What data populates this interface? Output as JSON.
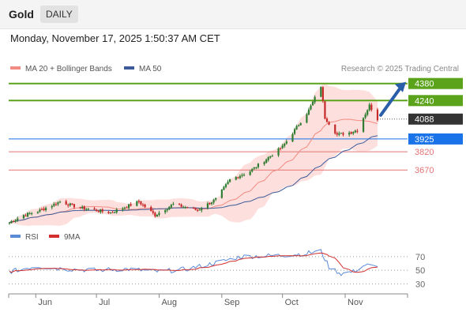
{
  "header": {
    "instrument": "Gold",
    "period": "DAILY",
    "timestamp": "Monday, November 17, 2025 1:50:37 AM CET",
    "copyright": "Research © 2025 Trading Central"
  },
  "colors": {
    "up": "#2e7d32",
    "down": "#c62828",
    "ma20": "#f28b82",
    "band_fill": "#fde0dd",
    "ma50": "#3c5a99",
    "resistance": "#5aa31a",
    "pivot": "#1a73e8",
    "support": "#e57373",
    "last": "#333333",
    "arrow": "#2a5ea8",
    "rsi": "#5b8bd6",
    "rsi_ma": "#d32f2f"
  },
  "chart_data": [
    {
      "type": "candlestick",
      "title": "",
      "legend": [
        {
          "name": "MA 20 + Bollinger Bands",
          "color": "#f28b82"
        },
        {
          "name": "MA 50",
          "color": "#3c5a99"
        }
      ],
      "legend_position": "top-left",
      "ylim": [
        3250,
        4430
      ],
      "x_ticks": [
        {
          "label": "Jun",
          "date": "2025-06-01"
        },
        {
          "label": "Jul",
          "date": "2025-07-01"
        },
        {
          "label": "Aug",
          "date": "2025-08-01"
        },
        {
          "label": "Sep",
          "date": "2025-09-01"
        },
        {
          "label": "Oct",
          "date": "2025-10-01"
        },
        {
          "label": "Nov",
          "date": "2025-11-01"
        }
      ],
      "date_range": [
        "2025-05-19",
        "2025-11-17"
      ],
      "price_anchors": [
        [
          "2025-05-19",
          3240
        ],
        [
          "2025-05-26",
          3300
        ],
        [
          "2025-06-02",
          3330
        ],
        [
          "2025-06-13",
          3410
        ],
        [
          "2025-06-23",
          3360
        ],
        [
          "2025-07-01",
          3340
        ],
        [
          "2025-07-08",
          3320
        ],
        [
          "2025-07-22",
          3410
        ],
        [
          "2025-07-30",
          3300
        ],
        [
          "2025-08-08",
          3390
        ],
        [
          "2025-08-20",
          3340
        ],
        [
          "2025-08-29",
          3430
        ],
        [
          "2025-09-05",
          3590
        ],
        [
          "2025-09-15",
          3660
        ],
        [
          "2025-09-23",
          3760
        ],
        [
          "2025-10-01",
          3860
        ],
        [
          "2025-10-08",
          4020
        ],
        [
          "2025-10-14",
          4160
        ],
        [
          "2025-10-20",
          4360
        ],
        [
          "2025-10-22",
          4100
        ],
        [
          "2025-10-28",
          3960
        ],
        [
          "2025-11-04",
          3980
        ],
        [
          "2025-11-07",
          4000
        ],
        [
          "2025-11-13",
          4200
        ],
        [
          "2025-11-17",
          4088
        ]
      ],
      "levels": [
        {
          "label": "4380",
          "value": 4380,
          "kind": "resistance"
        },
        {
          "label": "4240",
          "value": 4240,
          "kind": "resistance"
        },
        {
          "label": "4088",
          "value": 4088,
          "kind": "last"
        },
        {
          "label": "3925",
          "value": 3925,
          "kind": "pivot"
        },
        {
          "label": "3820",
          "value": 3820,
          "kind": "support"
        },
        {
          "label": "3670",
          "value": 3670,
          "kind": "support"
        }
      ],
      "forecast_arrow": {
        "direction": "up",
        "from": 4120,
        "to": 4380
      }
    },
    {
      "type": "line",
      "title": "",
      "legend": [
        {
          "name": "RSI",
          "color": "#5b8bd6"
        },
        {
          "name": "9MA",
          "color": "#d32f2f"
        }
      ],
      "legend_position": "top-left",
      "ylim": [
        20,
        85
      ],
      "y_ticks": [
        "70",
        "50",
        "30"
      ],
      "rsi_anchors": [
        [
          "2025-05-19",
          48
        ],
        [
          "2025-06-01",
          56
        ],
        [
          "2025-06-15",
          52
        ],
        [
          "2025-07-01",
          50
        ],
        [
          "2025-07-15",
          52
        ],
        [
          "2025-08-01",
          48
        ],
        [
          "2025-08-15",
          52
        ],
        [
          "2025-09-01",
          63
        ],
        [
          "2025-09-10",
          70
        ],
        [
          "2025-09-20",
          71
        ],
        [
          "2025-10-01",
          72
        ],
        [
          "2025-10-10",
          74
        ],
        [
          "2025-10-20",
          78
        ],
        [
          "2025-10-24",
          55
        ],
        [
          "2025-10-30",
          45
        ],
        [
          "2025-11-05",
          48
        ],
        [
          "2025-11-11",
          58
        ],
        [
          "2025-11-17",
          54
        ]
      ]
    }
  ]
}
